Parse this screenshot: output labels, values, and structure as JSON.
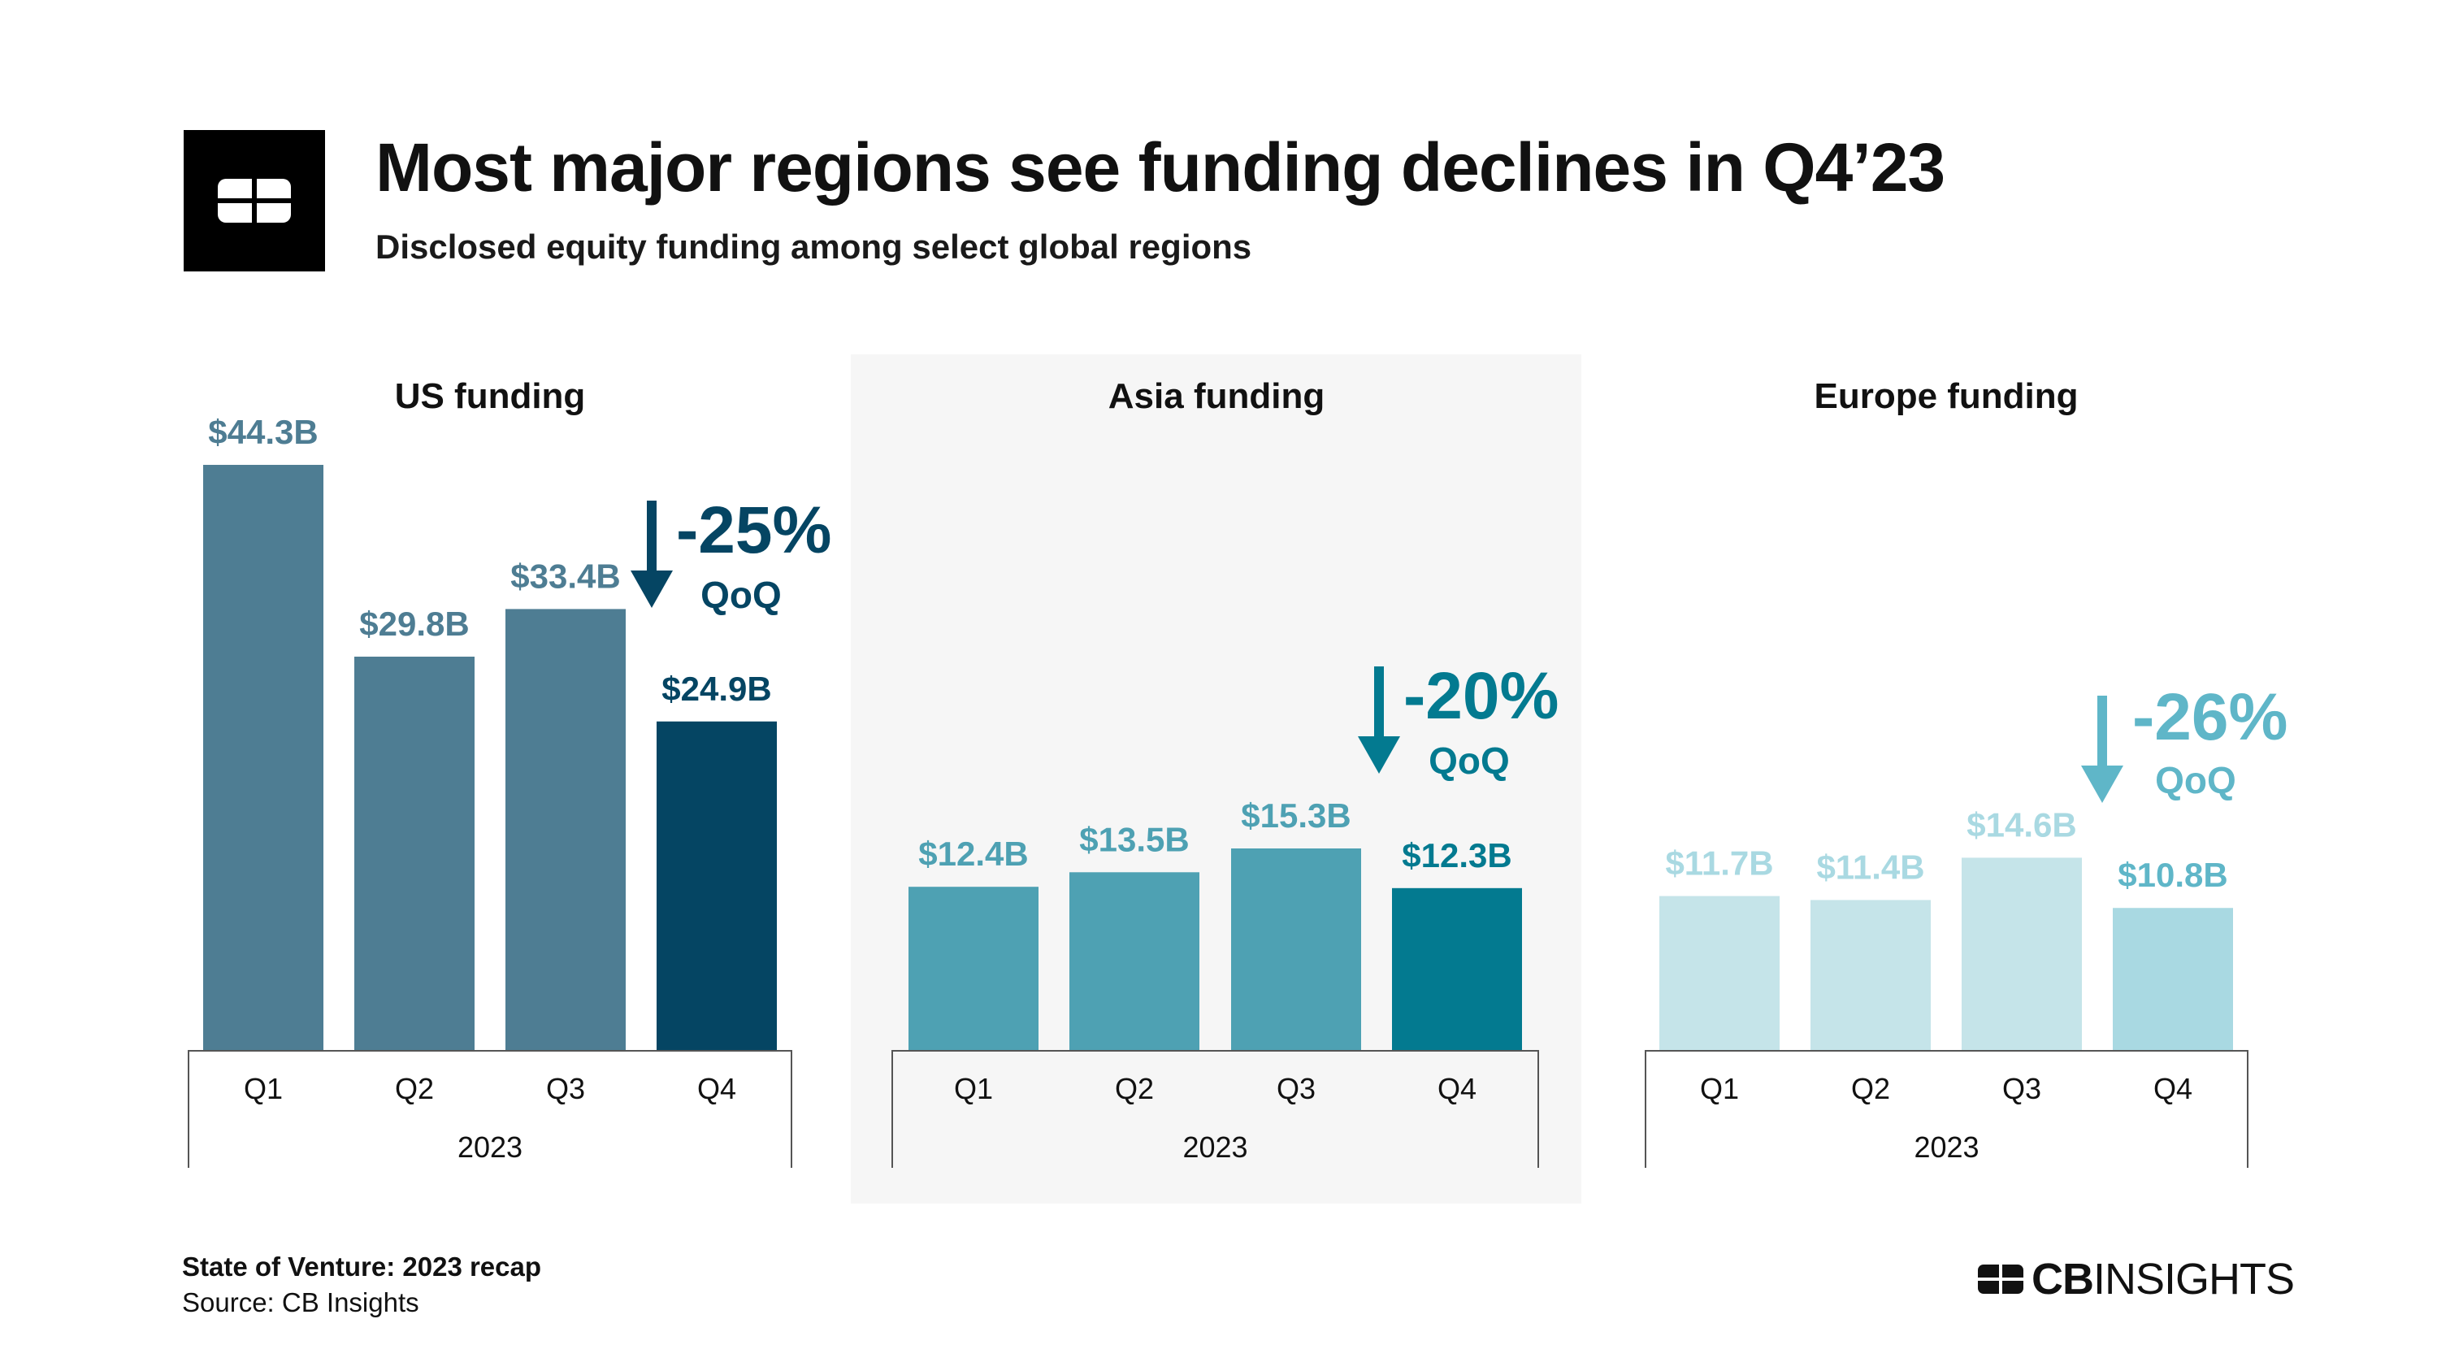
{
  "header": {
    "title": "Most major regions see funding declines in Q4’23",
    "subtitle": "Disclosed equity funding among select global regions",
    "logo_icon": "cb-insights-logo-icon"
  },
  "colors": {
    "us_bar": "#4e7d93",
    "us_highlight": "#054563",
    "asia_bar": "#4ea1b3",
    "asia_highlight": "#037a90",
    "europe_bar": "#c5e4e9",
    "europe_highlight": "#a9d9e2",
    "europe_label": "#a9d9e2",
    "europe_highlight_label": "#5fb6c8",
    "panel_background": "#f6f6f6"
  },
  "chart_data": [
    {
      "type": "bar",
      "title": "US funding",
      "categories": [
        "Q1",
        "Q2",
        "Q3",
        "Q4"
      ],
      "group_label": "2023",
      "values": [
        44.3,
        29.8,
        33.4,
        24.9
      ],
      "data_labels": [
        "$44.3B",
        "$29.8B",
        "$33.4B",
        "$24.9B"
      ],
      "change_label": "-25%",
      "change_unit": "QoQ",
      "highlight_index": 3
    },
    {
      "type": "bar",
      "title": "Asia funding",
      "categories": [
        "Q1",
        "Q2",
        "Q3",
        "Q4"
      ],
      "group_label": "2023",
      "values": [
        12.4,
        13.5,
        15.3,
        12.3
      ],
      "data_labels": [
        "$12.4B",
        "$13.5B",
        "$15.3B",
        "$12.3B"
      ],
      "change_label": "-20%",
      "change_unit": "QoQ",
      "highlight_index": 3
    },
    {
      "type": "bar",
      "title": "Europe funding",
      "categories": [
        "Q1",
        "Q2",
        "Q3",
        "Q4"
      ],
      "group_label": "2023",
      "values": [
        11.7,
        11.4,
        14.6,
        10.8
      ],
      "data_labels": [
        "$11.7B",
        "$11.4B",
        "$14.6B",
        "$10.8B"
      ],
      "change_label": "-26%",
      "change_unit": "QoQ",
      "highlight_index": 3
    }
  ],
  "footer": {
    "report": "State of Venture: 2023 recap",
    "source": "Source: CB Insights",
    "brand_bold": "CB",
    "brand_light": "INSIGHTS"
  }
}
